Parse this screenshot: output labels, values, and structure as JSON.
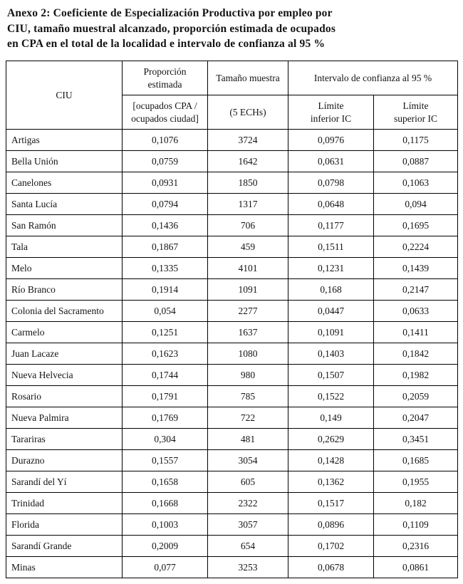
{
  "title": {
    "line1": "Anexo 2: Coeficiente de Especialización Productiva por empleo por",
    "line2": "CIU, tamaño muestral alcanzado, proporción estimada de ocupados",
    "line3": "en CPA en el total de la localidad e intervalo de confianza al 95 %"
  },
  "table": {
    "headers": {
      "ciu": "CIU",
      "proporcion_top": "Proporción\nestimada",
      "proporcion_bottom": "[ocupados CPA /\nocupados ciudad]",
      "muestra_top": "Tamaño muestra",
      "muestra_bottom": "(5 ECHs)",
      "intervalo": "Intervalo de confianza al 95 %",
      "limite_inferior": "Límite\ninferior IC",
      "limite_superior": "Límite\nsuperior IC"
    },
    "rows": [
      {
        "ciu": "Artigas",
        "proporcion": "0,1076",
        "muestra": "3724",
        "limite_inferior": "0,0976",
        "limite_superior": "0,1175"
      },
      {
        "ciu": "Bella Unión",
        "proporcion": "0,0759",
        "muestra": "1642",
        "limite_inferior": "0,0631",
        "limite_superior": "0,0887"
      },
      {
        "ciu": "Canelones",
        "proporcion": "0,0931",
        "muestra": "1850",
        "limite_inferior": "0,0798",
        "limite_superior": "0,1063"
      },
      {
        "ciu": "Santa Lucía",
        "proporcion": "0,0794",
        "muestra": "1317",
        "limite_inferior": "0,0648",
        "limite_superior": "0,094"
      },
      {
        "ciu": "San Ramón",
        "proporcion": "0,1436",
        "muestra": "706",
        "limite_inferior": "0,1177",
        "limite_superior": "0,1695"
      },
      {
        "ciu": "Tala",
        "proporcion": "0,1867",
        "muestra": "459",
        "limite_inferior": "0,1511",
        "limite_superior": "0,2224"
      },
      {
        "ciu": "Melo",
        "proporcion": "0,1335",
        "muestra": "4101",
        "limite_inferior": "0,1231",
        "limite_superior": "0,1439"
      },
      {
        "ciu": "Río Branco",
        "proporcion": "0,1914",
        "muestra": "1091",
        "limite_inferior": "0,168",
        "limite_superior": "0,2147"
      },
      {
        "ciu": "Colonia del Sacramento",
        "proporcion": "0,054",
        "muestra": "2277",
        "limite_inferior": "0,0447",
        "limite_superior": "0,0633"
      },
      {
        "ciu": "Carmelo",
        "proporcion": "0,1251",
        "muestra": "1637",
        "limite_inferior": "0,1091",
        "limite_superior": "0,1411"
      },
      {
        "ciu": "Juan Lacaze",
        "proporcion": "0,1623",
        "muestra": "1080",
        "limite_inferior": "0,1403",
        "limite_superior": "0,1842"
      },
      {
        "ciu": "Nueva Helvecia",
        "proporcion": "0,1744",
        "muestra": "980",
        "limite_inferior": "0,1507",
        "limite_superior": "0,1982"
      },
      {
        "ciu": "Rosario",
        "proporcion": "0,1791",
        "muestra": "785",
        "limite_inferior": "0,1522",
        "limite_superior": "0,2059"
      },
      {
        "ciu": "Nueva Palmira",
        "proporcion": "0,1769",
        "muestra": "722",
        "limite_inferior": "0,149",
        "limite_superior": "0,2047"
      },
      {
        "ciu": "Tarariras",
        "proporcion": "0,304",
        "muestra": "481",
        "limite_inferior": "0,2629",
        "limite_superior": "0,3451"
      },
      {
        "ciu": "Durazno",
        "proporcion": "0,1557",
        "muestra": "3054",
        "limite_inferior": "0,1428",
        "limite_superior": "0,1685"
      },
      {
        "ciu": "Sarandí del Yí",
        "proporcion": "0,1658",
        "muestra": "605",
        "limite_inferior": "0,1362",
        "limite_superior": "0,1955"
      },
      {
        "ciu": "Trinidad",
        "proporcion": "0,1668",
        "muestra": "2322",
        "limite_inferior": "0,1517",
        "limite_superior": "0,182"
      },
      {
        "ciu": "Florida",
        "proporcion": "0,1003",
        "muestra": "3057",
        "limite_inferior": "0,0896",
        "limite_superior": "0,1109"
      },
      {
        "ciu": "Sarandí Grande",
        "proporcion": "0,2009",
        "muestra": "654",
        "limite_inferior": "0,1702",
        "limite_superior": "0,2316"
      },
      {
        "ciu": "Minas",
        "proporcion": "0,077",
        "muestra": "3253",
        "limite_inferior": "0,0678",
        "limite_superior": "0,0861"
      }
    ]
  }
}
